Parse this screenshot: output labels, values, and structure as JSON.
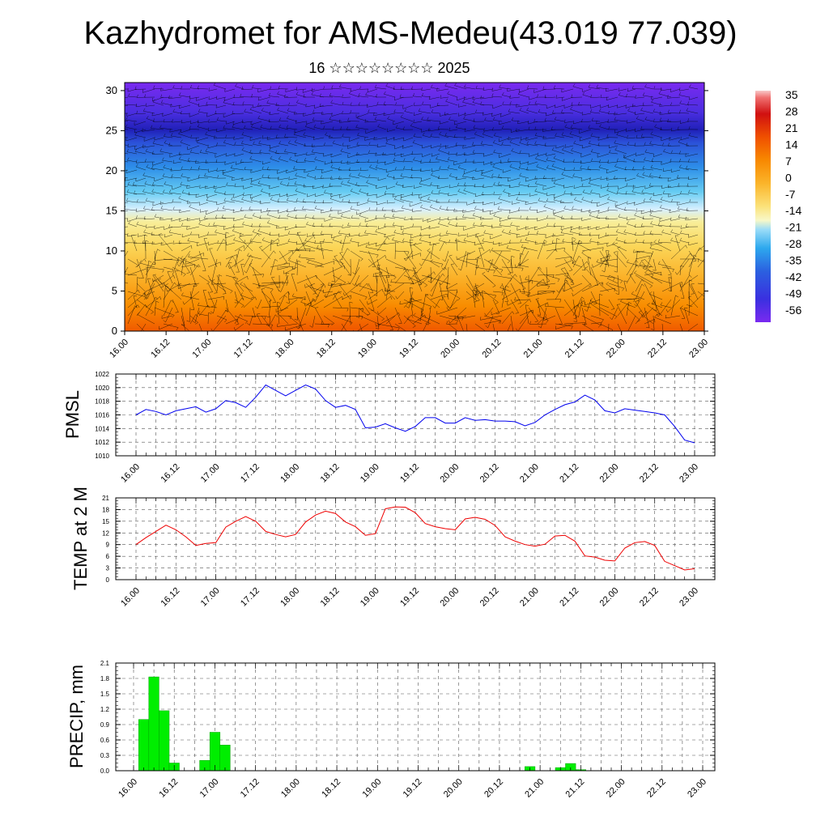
{
  "title": "Kazhydromet for AMS-Medeu(43.019 77.039)",
  "subtitle": "16 ☆☆☆☆☆☆☆☆ 2025",
  "chart_data": [
    {
      "type": "heatmap",
      "id": "upper-air",
      "title": "",
      "x_ticks": [
        "16.00",
        "16.12",
        "17.00",
        "17.12",
        "18.00",
        "18.12",
        "19.00",
        "19.12",
        "20.00",
        "20.12",
        "21.00",
        "21.12",
        "22.00",
        "22.12",
        "23.00"
      ],
      "y_ticks": [
        0,
        5,
        10,
        15,
        20,
        25,
        30
      ],
      "ylim": [
        0,
        31
      ],
      "colorbar": {
        "labels": [
          "35",
          "28",
          "21",
          "14",
          "7",
          "0",
          "-7",
          "-14",
          "-21",
          "-28",
          "-35",
          "-42",
          "-49",
          "-56"
        ],
        "range": [
          -63,
          42
        ]
      },
      "features": "temperature shading with wind barbs; warm surface layer (~20 near 19.00), freezing level ~15, cold core (~-56) near 25 and above"
    },
    {
      "type": "line",
      "id": "pmsl",
      "ylabel": "PMSL",
      "ylim": [
        1010,
        1022
      ],
      "y_ticks": [
        1010,
        1012,
        1014,
        1016,
        1018,
        1020,
        1022
      ],
      "x_ticks": [
        "16.00",
        "16.12",
        "17.00",
        "17.12",
        "18.00",
        "18.12",
        "19.00",
        "19.12",
        "20.00",
        "20.12",
        "21.00",
        "21.12",
        "22.00",
        "22.12",
        "23.00"
      ],
      "step_hours": 3,
      "color": "#0000ee",
      "values": [
        1016.0,
        1016.8,
        1016.5,
        1016.0,
        1016.6,
        1016.9,
        1017.2,
        1016.4,
        1016.9,
        1018.1,
        1017.8,
        1017.1,
        1018.6,
        1020.4,
        1019.6,
        1018.8,
        1019.6,
        1020.4,
        1019.8,
        1018.1,
        1017.1,
        1017.4,
        1016.8,
        1014.1,
        1014.2,
        1014.7,
        1014.1,
        1013.6,
        1014.3,
        1015.6,
        1015.6,
        1014.8,
        1014.8,
        1015.6,
        1015.2,
        1015.3,
        1015.1,
        1015.1,
        1015.0,
        1014.4,
        1014.9,
        1016.0,
        1016.8,
        1017.5,
        1017.9,
        1018.9,
        1018.2,
        1016.6,
        1016.3,
        1016.9,
        1016.7,
        1016.5,
        1016.3,
        1016.0,
        1014.3,
        1012.3,
        1011.9
      ]
    },
    {
      "type": "line",
      "id": "temp2m",
      "ylabel": "TEMP at 2 M",
      "ylim": [
        0,
        21
      ],
      "y_ticks": [
        0,
        3,
        6,
        9,
        12,
        15,
        18,
        21
      ],
      "x_ticks": [
        "16.00",
        "16.12",
        "17.00",
        "17.12",
        "18.00",
        "18.12",
        "19.00",
        "19.12",
        "20.00",
        "20.12",
        "21.00",
        "21.12",
        "22.00",
        "22.12",
        "23.00"
      ],
      "step_hours": 3,
      "color": "#ee0000",
      "values": [
        9.0,
        10.8,
        12.4,
        14.0,
        12.8,
        11.0,
        8.8,
        9.3,
        9.5,
        13.5,
        15.0,
        16.2,
        15.0,
        12.4,
        11.6,
        11.0,
        11.6,
        14.8,
        16.6,
        17.6,
        17.0,
        14.8,
        13.6,
        11.4,
        11.8,
        18.2,
        18.7,
        18.6,
        17.2,
        14.4,
        13.6,
        13.1,
        12.8,
        15.6,
        16.0,
        15.5,
        13.9,
        11.0,
        9.9,
        9.0,
        8.6,
        9.1,
        11.2,
        11.4,
        9.9,
        6.1,
        5.8,
        5.0,
        4.8,
        8.1,
        9.5,
        9.8,
        8.8,
        4.7,
        3.6,
        2.5,
        2.8
      ]
    },
    {
      "type": "bar",
      "id": "precip",
      "ylabel": "PRECIP, mm",
      "ylim": [
        0,
        2.1
      ],
      "y_ticks": [
        "0.0",
        "0.3",
        "0.6",
        "0.9",
        "1.2",
        "1.5",
        "1.8",
        "2.1"
      ],
      "x_ticks": [
        "16.00",
        "16.12",
        "17.00",
        "17.12",
        "18.00",
        "18.12",
        "19.00",
        "19.12",
        "20.00",
        "20.12",
        "21.00",
        "21.12",
        "22.00",
        "22.12",
        "23.00"
      ],
      "step_hours": 3,
      "color": "#00ee00",
      "values": [
        0,
        1.0,
        1.83,
        1.17,
        0.15,
        0,
        0,
        0.2,
        0.75,
        0.5,
        0,
        0,
        0,
        0,
        0,
        0,
        0,
        0,
        0,
        0,
        0,
        0,
        0,
        0,
        0,
        0,
        0,
        0,
        0,
        0,
        0,
        0,
        0,
        0,
        0,
        0,
        0,
        0,
        0,
        0.08,
        0,
        0,
        0.06,
        0.14,
        0.02,
        0,
        0,
        0,
        0,
        0,
        0,
        0,
        0,
        0,
        0,
        0
      ]
    }
  ]
}
